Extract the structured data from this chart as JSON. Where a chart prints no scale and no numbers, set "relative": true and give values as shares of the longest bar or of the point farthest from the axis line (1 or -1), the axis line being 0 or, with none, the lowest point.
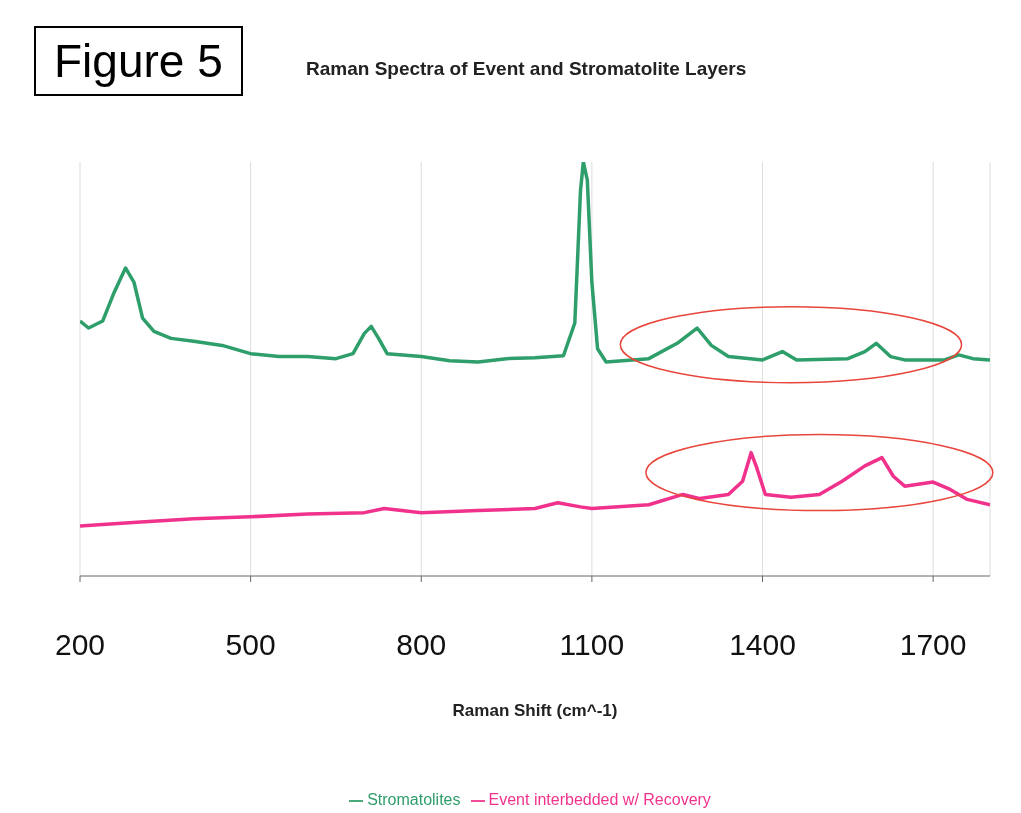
{
  "chart_data": {
    "type": "line",
    "title": "Raman Spectra of Event and Stromatolite Layers",
    "xlabel": "Raman Shift (cm^-1)",
    "annotations": [
      "Figure 5"
    ],
    "relative": true,
    "xlim": [
      200,
      1800
    ],
    "xticks": [
      200,
      500,
      800,
      1100,
      1400,
      1700
    ],
    "grid": "x",
    "legend": "bottom",
    "marker": "none",
    "line_style": "solid",
    "series": [
      {
        "name": "Stromatolites",
        "color": "#2e9e6a",
        "x": [
          200,
          215,
          240,
          260,
          280,
          295,
          310,
          330,
          360,
          400,
          450,
          500,
          550,
          600,
          650,
          680,
          700,
          712,
          725,
          740,
          800,
          850,
          900,
          950,
          1000,
          1050,
          1070,
          1080,
          1085,
          1092,
          1100,
          1110,
          1125,
          1200,
          1250,
          1285,
          1310,
          1340,
          1400,
          1435,
          1460,
          1550,
          1580,
          1600,
          1625,
          1650,
          1720,
          1745,
          1770,
          1800
        ],
        "values": [
          0.616,
          0.599,
          0.616,
          0.685,
          0.744,
          0.709,
          0.623,
          0.591,
          0.574,
          0.567,
          0.557,
          0.537,
          0.53,
          0.53,
          0.525,
          0.537,
          0.586,
          0.603,
          0.574,
          0.537,
          0.53,
          0.52,
          0.517,
          0.525,
          0.527,
          0.532,
          0.611,
          0.931,
          1,
          0.956,
          0.709,
          0.549,
          0.517,
          0.525,
          0.562,
          0.599,
          0.557,
          0.53,
          0.522,
          0.542,
          0.522,
          0.525,
          0.542,
          0.562,
          0.53,
          0.522,
          0.522,
          0.534,
          0.525,
          0.522
        ]
      },
      {
        "name": "Event interbedded w/ Recovery",
        "color": "#f0328c",
        "x": [
          200,
          300,
          400,
          500,
          600,
          700,
          735,
          800,
          900,
          1000,
          1040,
          1080,
          1100,
          1200,
          1260,
          1290,
          1340,
          1365,
          1380,
          1390,
          1405,
          1450,
          1500,
          1540,
          1580,
          1610,
          1630,
          1650,
          1700,
          1730,
          1760,
          1800
        ],
        "values": [
          0.121,
          0.13,
          0.138,
          0.143,
          0.15,
          0.153,
          0.163,
          0.153,
          0.158,
          0.163,
          0.177,
          0.167,
          0.163,
          0.172,
          0.197,
          0.187,
          0.197,
          0.229,
          0.298,
          0.261,
          0.197,
          0.19,
          0.197,
          0.229,
          0.266,
          0.286,
          0.241,
          0.217,
          0.227,
          0.209,
          0.185,
          0.172
        ]
      }
    ]
  }
}
